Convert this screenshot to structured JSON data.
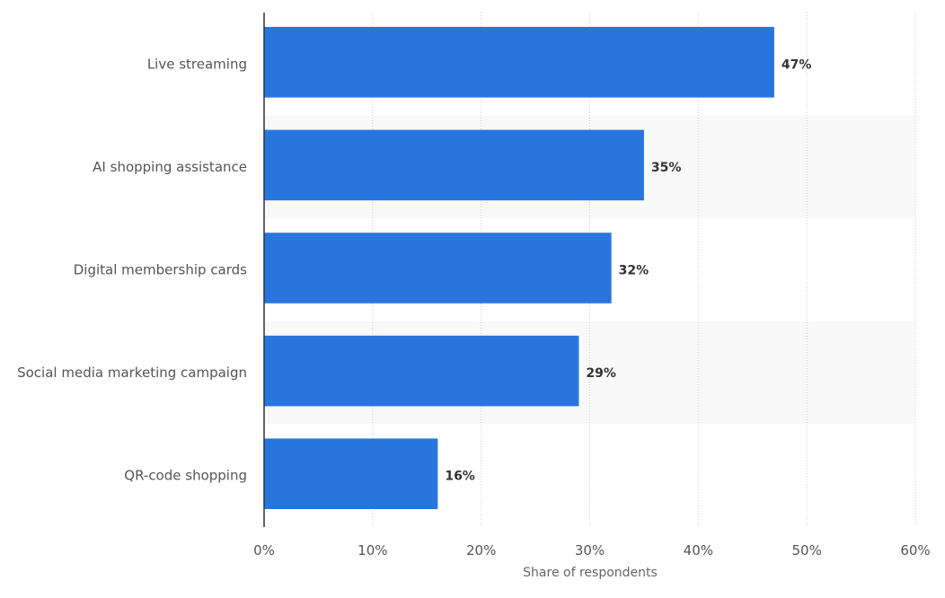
{
  "chart_data": {
    "type": "bar",
    "orientation": "horizontal",
    "categories": [
      "Live streaming",
      "AI shopping assistance",
      "Digital membership cards",
      "Social media marketing campaign",
      "QR-code shopping"
    ],
    "values": [
      47,
      35,
      32,
      29,
      16
    ],
    "data_labels": [
      "47%",
      "35%",
      "32%",
      "29%",
      "16%"
    ],
    "xlabel": "Share of respondents",
    "ylabel": "",
    "xlim": [
      0,
      60
    ],
    "xticks": [
      0,
      10,
      20,
      30,
      40,
      50,
      60
    ],
    "xtick_labels": [
      "0%",
      "10%",
      "20%",
      "30%",
      "40%",
      "50%",
      "60%"
    ],
    "grid": "vertical dotted",
    "legend": "none",
    "colors": {
      "bar": "#2876dd",
      "band": "#f9f9f9",
      "text": "#555555",
      "label": "#333333"
    }
  }
}
